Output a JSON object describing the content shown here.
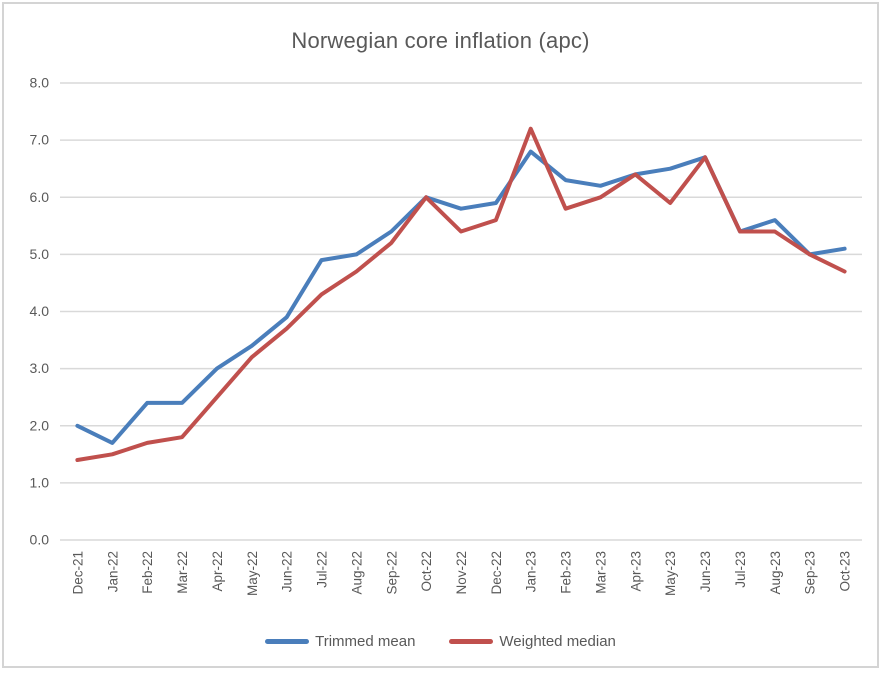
{
  "window": {
    "background": "#ffffff",
    "border_color": "#d4d4d4"
  },
  "chart_data": {
    "type": "line",
    "title": "Norwegian core inflation (apc)",
    "categories": [
      "Dec-21",
      "Jan-22",
      "Feb-22",
      "Mar-22",
      "Apr-22",
      "May-22",
      "Jun-22",
      "Jul-22",
      "Aug-22",
      "Sep-22",
      "Oct-22",
      "Nov-22",
      "Dec-22",
      "Jan-23",
      "Feb-23",
      "Mar-23",
      "Apr-23",
      "May-23",
      "Jun-23",
      "Jul-23",
      "Aug-23",
      "Sep-23",
      "Oct-23"
    ],
    "series": [
      {
        "name": "Trimmed mean",
        "color": "#4a7ebb",
        "values": [
          2.0,
          1.7,
          2.4,
          2.4,
          3.0,
          3.4,
          3.9,
          4.9,
          5.0,
          5.4,
          6.0,
          5.8,
          5.9,
          6.8,
          6.3,
          6.2,
          6.4,
          6.5,
          6.7,
          5.4,
          5.6,
          5.0,
          5.1
        ]
      },
      {
        "name": "Weighted median",
        "color": "#c0504d",
        "values": [
          1.4,
          1.5,
          1.7,
          1.8,
          2.5,
          3.2,
          3.7,
          4.3,
          4.7,
          5.2,
          6.0,
          5.4,
          5.6,
          7.2,
          5.8,
          6.0,
          6.4,
          5.9,
          6.7,
          5.4,
          5.4,
          5.0,
          4.7
        ]
      }
    ],
    "xlabel": "",
    "ylabel": "",
    "ylim": [
      0.0,
      8.0
    ],
    "ytick_labels": [
      "0.0",
      "1.0",
      "2.0",
      "3.0",
      "4.0",
      "5.0",
      "6.0",
      "7.0",
      "8.0"
    ],
    "grid": "horizontal",
    "gridline_color": "#d9d9d9",
    "label_color": "#595959",
    "legend_position": "bottom"
  },
  "legend": {
    "items": [
      {
        "label": "Trimmed mean"
      },
      {
        "label": "Weighted median"
      }
    ]
  }
}
